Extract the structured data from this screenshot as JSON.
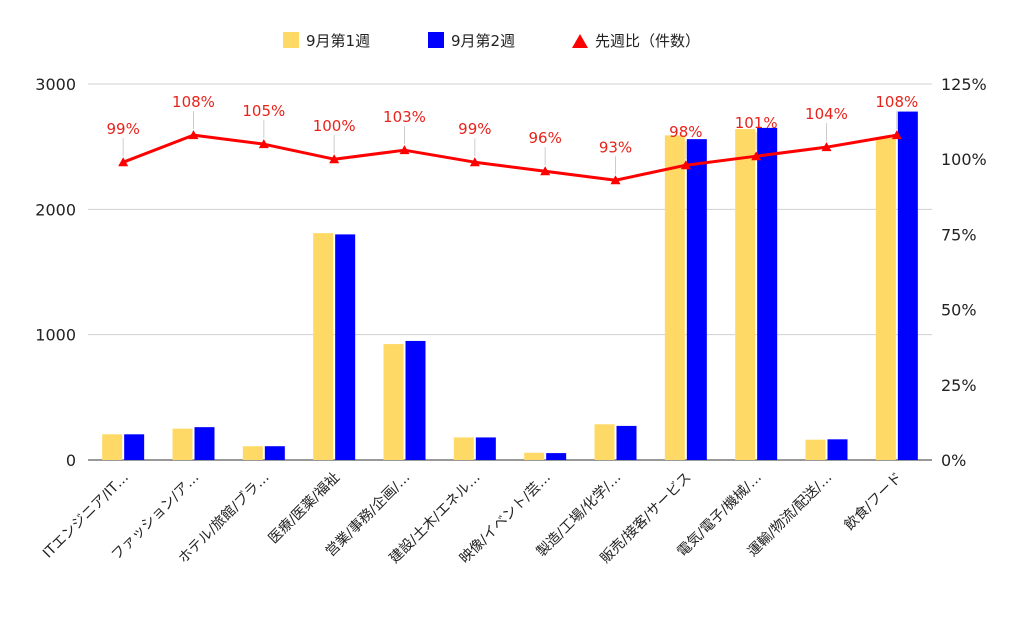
{
  "chart_data": {
    "type": "bar",
    "categories": [
      "ITエンジニア/IT…",
      "ファッション/ア…",
      "ホテル/旅館/ブラ…",
      "医療/医薬/福祉",
      "営業/事務/企画/…",
      "建設/土木/エネル…",
      "映像/イベント/芸…",
      "製造/工場/化学/…",
      "販売/接客/サービス",
      "電気/電子/機械/…",
      "運輸/物流/配送/…",
      "飲食/フード"
    ],
    "series": [
      {
        "name": "9月第1週",
        "type": "bar",
        "axis": "left",
        "color": "#ffd966",
        "values": [
          205,
          250,
          110,
          1810,
          925,
          180,
          58,
          285,
          2590,
          2640,
          162,
          2570
        ]
      },
      {
        "name": "9月第2週",
        "type": "bar",
        "axis": "left",
        "color": "#0000ff",
        "values": [
          205,
          262,
          110,
          1800,
          950,
          180,
          55,
          272,
          2560,
          2650,
          165,
          2780
        ]
      },
      {
        "name": "先週比（件数）",
        "type": "line",
        "axis": "right",
        "color": "#ff0000",
        "values": [
          99,
          108,
          105,
          100,
          103,
          99,
          96,
          93,
          98,
          101,
          104,
          108
        ],
        "labels": [
          "99%",
          "108%",
          "105%",
          "100%",
          "103%",
          "99%",
          "96%",
          "93%",
          "98%",
          "101%",
          "104%",
          "108%"
        ]
      }
    ],
    "yleft": {
      "min": 0,
      "max": 3000,
      "ticks": [
        0,
        1000,
        2000,
        3000
      ],
      "tick_labels": [
        "0",
        "1000",
        "2000",
        "3000"
      ]
    },
    "yright": {
      "min": 0,
      "max": 125,
      "ticks": [
        0,
        25,
        50,
        75,
        100,
        125
      ],
      "tick_labels": [
        "0%",
        "25%",
        "50%",
        "75%",
        "100%",
        "125%"
      ]
    },
    "grid": true,
    "legend": "top-center"
  }
}
